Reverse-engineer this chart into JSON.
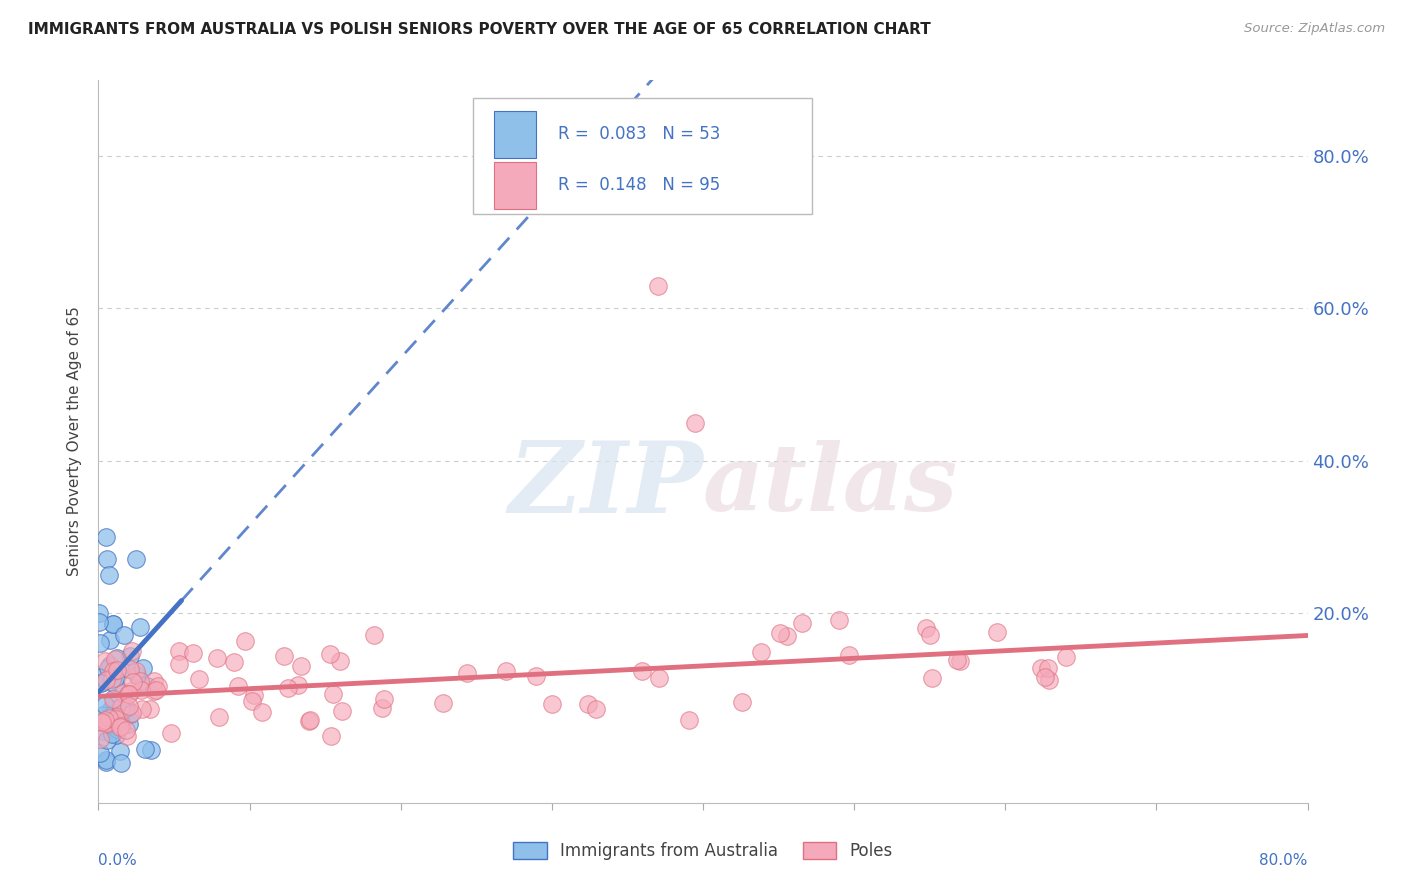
{
  "title": "IMMIGRANTS FROM AUSTRALIA VS POLISH SENIORS POVERTY OVER THE AGE OF 65 CORRELATION CHART",
  "source": "Source: ZipAtlas.com",
  "ylabel": "Seniors Poverty Over the Age of 65",
  "legend_entry1": "R =  0.083   N = 53",
  "legend_entry2": "R =  0.148   N = 95",
  "legend_label1": "Immigrants from Australia",
  "legend_label2": "Poles",
  "xlim": [
    0.0,
    0.8
  ],
  "ylim": [
    -0.05,
    0.9
  ],
  "yticks": [
    0.0,
    0.2,
    0.4,
    0.6,
    0.8
  ],
  "ytick_labels": [
    "",
    "20.0%",
    "40.0%",
    "60.0%",
    "80.0%"
  ],
  "color_blue": "#8FC0EA",
  "color_pink": "#F5AABB",
  "color_blue_line": "#4472C4",
  "color_pink_line": "#E07080",
  "color_text_blue": "#4472C4",
  "watermark_zip": "ZIP",
  "watermark_atlas": "atlas",
  "background": "#FFFFFF",
  "grid_color": "#CCCCCC",
  "aus_trend_x_solid_end": 0.055,
  "aus_trend_intercept": 0.095,
  "aus_trend_slope": 2.2,
  "poles_trend_intercept": 0.09,
  "poles_trend_slope": 0.1
}
